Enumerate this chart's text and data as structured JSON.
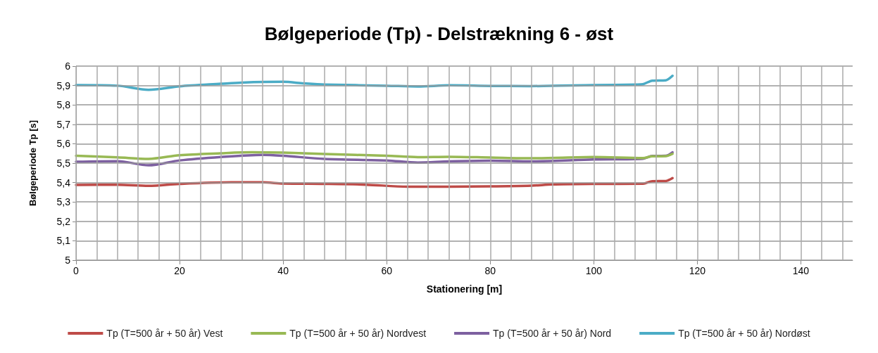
{
  "chart_data": {
    "type": "line",
    "title": "Bølgeperiode (Tp) - Delstrækning 6 - øst",
    "xlabel": "Stationering [m]",
    "ylabel": "Bølgeperiode Tp [s]",
    "xlim": [
      0,
      150
    ],
    "xticks": [
      0,
      {
        "value": 4,
        "label": null
      },
      {
        "value": 8,
        "label": null
      },
      {
        "value": 12,
        "label": null
      },
      {
        "value": 16,
        "label": null
      },
      20,
      {
        "value": 24,
        "label": null
      },
      {
        "value": 28,
        "label": null
      },
      {
        "value": 32,
        "label": null
      },
      {
        "value": 36,
        "label": null
      },
      40,
      {
        "value": 44,
        "label": null
      },
      {
        "value": 48,
        "label": null
      },
      {
        "value": 52,
        "label": null
      },
      {
        "value": 56,
        "label": null
      },
      60,
      {
        "value": 64,
        "label": null
      },
      {
        "value": 68,
        "label": null
      },
      {
        "value": 72,
        "label": null
      },
      {
        "value": 76,
        "label": null
      },
      80,
      {
        "value": 84,
        "label": null
      },
      {
        "value": 88,
        "label": null
      },
      {
        "value": 92,
        "label": null
      },
      {
        "value": 96,
        "label": null
      },
      100,
      {
        "value": 104,
        "label": null
      },
      {
        "value": 108,
        "label": null
      },
      {
        "value": 112,
        "label": null
      },
      {
        "value": 116,
        "label": null
      },
      120,
      {
        "value": 124,
        "label": null
      },
      {
        "value": 128,
        "label": null
      },
      {
        "value": 132,
        "label": null
      },
      {
        "value": 136,
        "label": null
      },
      140,
      {
        "value": 144,
        "label": null
      },
      {
        "value": 148,
        "label": null
      }
    ],
    "ylim": [
      5,
      6
    ],
    "yticks": [
      {
        "value": 5,
        "label": "5"
      },
      {
        "value": 5.1,
        "label": "5,1"
      },
      {
        "value": 5.2,
        "label": "5,2"
      },
      {
        "value": 5.3,
        "label": "5,3"
      },
      {
        "value": 5.4,
        "label": "5,4"
      },
      {
        "value": 5.5,
        "label": "5,5"
      },
      {
        "value": 5.6,
        "label": "5,6"
      },
      {
        "value": 5.7,
        "label": "5,7"
      },
      {
        "value": 5.8,
        "label": "5,8"
      },
      {
        "value": 5.9,
        "label": "5,9"
      },
      {
        "value": 6,
        "label": "6"
      }
    ],
    "grid": true,
    "legend": "bottom",
    "marker": "none",
    "line_style": "solid",
    "series": [
      {
        "name": "Tp (T=500 år + 50 år) Vest",
        "color": "#be4b48",
        "x": [
          0,
          8,
          14,
          20,
          30,
          36,
          40,
          48,
          56,
          64,
          72,
          80,
          88,
          92,
          100,
          109.5,
          111.3,
          113.9,
          115.2
        ],
        "values": [
          5.388,
          5.389,
          5.383,
          5.393,
          5.401,
          5.401,
          5.395,
          5.393,
          5.389,
          5.379,
          5.379,
          5.38,
          5.384,
          5.39,
          5.393,
          5.394,
          5.407,
          5.408,
          5.423
        ]
      },
      {
        "name": "Tp (T=500 år + 50 år) Nordvest",
        "color": "#98b954",
        "x": [
          0,
          8,
          14,
          20,
          28,
          34,
          40,
          48,
          60,
          66,
          72,
          80,
          88,
          100,
          109.5,
          111.3,
          113.9,
          115.2
        ],
        "values": [
          5.538,
          5.53,
          5.522,
          5.541,
          5.551,
          5.556,
          5.554,
          5.547,
          5.538,
          5.531,
          5.533,
          5.529,
          5.525,
          5.532,
          5.526,
          5.535,
          5.536,
          5.548
        ]
      },
      {
        "name": "Tp (T=500 år + 50 år) Nord",
        "color": "#7d60a0",
        "x": [
          0,
          8,
          14,
          20,
          28,
          36,
          40,
          48,
          60,
          66,
          72,
          80,
          88,
          100,
          109.5,
          111.3,
          113.9,
          115.2
        ],
        "values": [
          5.507,
          5.51,
          5.489,
          5.514,
          5.532,
          5.543,
          5.538,
          5.522,
          5.514,
          5.503,
          5.509,
          5.513,
          5.509,
          5.519,
          5.523,
          5.537,
          5.538,
          5.556
        ]
      },
      {
        "name": "Tp (T=500 år + 50 år) Nordøst",
        "color": "#4bacc6",
        "x": [
          0,
          8,
          14,
          20,
          28,
          32,
          40,
          44,
          48,
          60,
          66,
          72.2,
          80,
          87.6,
          100,
          108.2,
          109.5,
          111.3,
          113.9,
          115.2
        ],
        "values": [
          5.902,
          5.899,
          5.878,
          5.896,
          5.909,
          5.915,
          5.919,
          5.911,
          5.905,
          5.899,
          5.895,
          5.901,
          5.898,
          5.897,
          5.902,
          5.905,
          5.907,
          5.925,
          5.927,
          5.95
        ]
      }
    ]
  }
}
